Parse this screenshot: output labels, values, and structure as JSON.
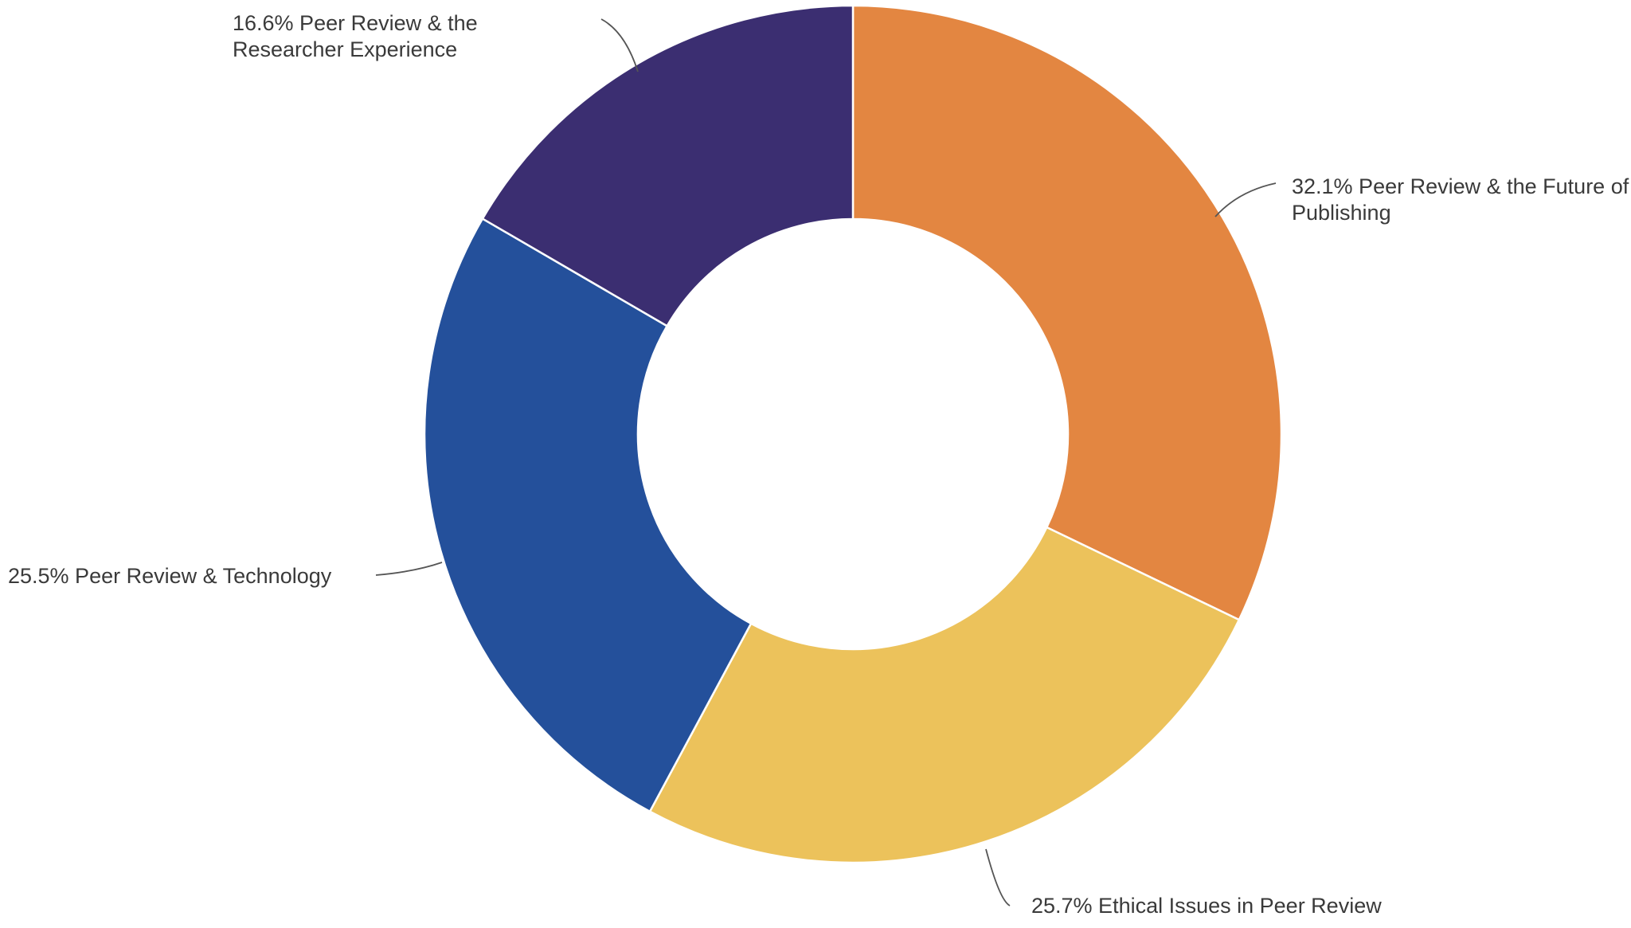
{
  "chart_data": {
    "type": "pie",
    "variant": "donut",
    "title": "",
    "legend": "none",
    "categories": [
      "Peer Review & the Future of Publishing",
      "Ethical Issues in Peer Review",
      "Peer Review & Technology",
      "Peer Review & the Researcher Experience"
    ],
    "values": [
      32.1,
      25.7,
      25.5,
      16.6
    ],
    "colors": [
      "#e38641",
      "#ecc25b",
      "#24509b",
      "#3b2e71"
    ],
    "labels": [
      [
        "32.1% Peer Review & the Future of",
        "Publishing"
      ],
      [
        "25.7% Ethical Issues in Peer Review"
      ],
      [
        "25.5% Peer Review & Technology"
      ],
      [
        "16.6% Peer Review & the",
        "Researcher Experience"
      ]
    ]
  }
}
